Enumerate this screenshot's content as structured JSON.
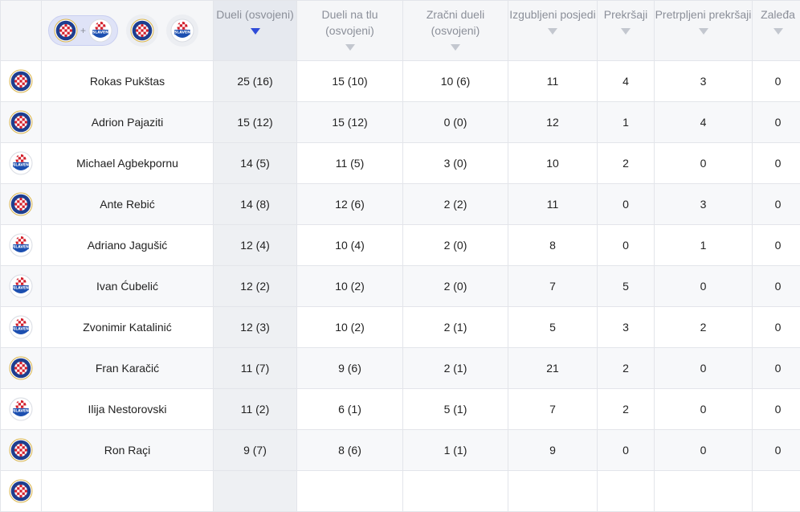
{
  "filters": {
    "combined": {
      "name": "hajduk-slaven-combined",
      "plus": "+"
    },
    "hajduk": {
      "name": "hajduk"
    },
    "slaven": {
      "name": "slaven"
    }
  },
  "logos": {
    "hajduk": {
      "text": "HAJDUK SPLIT",
      "colors": {
        "blue": "#1e3e8f",
        "red": "#d31f2b"
      }
    },
    "slaven": {
      "text": "SLAVEN",
      "colors": {
        "blue": "#1c4fb0",
        "red": "#d31f2b"
      }
    }
  },
  "sorted_column": "duels",
  "columns": [
    {
      "key": "duels",
      "label": "Dueli (osvojeni)",
      "active": true
    },
    {
      "key": "ground_duels",
      "label": "Dueli na tlu (osvojeni)",
      "active": false
    },
    {
      "key": "aerial_duels",
      "label": "Zračni dueli (osvojeni)",
      "active": false
    },
    {
      "key": "possession_lost",
      "label": "Izgubljeni posjedi",
      "active": false
    },
    {
      "key": "fouls",
      "label": "Prekršaji",
      "active": false
    },
    {
      "key": "fouled",
      "label": "Pretrpljeni prekršaji",
      "active": false
    },
    {
      "key": "offsides",
      "label": "Zaleđa",
      "active": false
    }
  ],
  "rows": [
    {
      "club": "hajduk",
      "name": "Rokas Pukštas",
      "duels": "25 (16)",
      "ground_duels": "15 (10)",
      "aerial_duels": "10 (6)",
      "possession_lost": "11",
      "fouls": "4",
      "fouled": "3",
      "offsides": "0"
    },
    {
      "club": "hajduk",
      "name": "Adrion Pajaziti",
      "duels": "15 (12)",
      "ground_duels": "15 (12)",
      "aerial_duels": "0 (0)",
      "possession_lost": "12",
      "fouls": "1",
      "fouled": "4",
      "offsides": "0"
    },
    {
      "club": "slaven",
      "name": "Michael Agbekpornu",
      "duels": "14 (5)",
      "ground_duels": "11 (5)",
      "aerial_duels": "3 (0)",
      "possession_lost": "10",
      "fouls": "2",
      "fouled": "0",
      "offsides": "0"
    },
    {
      "club": "hajduk",
      "name": "Ante Rebić",
      "duels": "14 (8)",
      "ground_duels": "12 (6)",
      "aerial_duels": "2 (2)",
      "possession_lost": "11",
      "fouls": "0",
      "fouled": "3",
      "offsides": "0"
    },
    {
      "club": "slaven",
      "name": "Adriano Jagušić",
      "duels": "12 (4)",
      "ground_duels": "10 (4)",
      "aerial_duels": "2 (0)",
      "possession_lost": "8",
      "fouls": "0",
      "fouled": "1",
      "offsides": "0"
    },
    {
      "club": "slaven",
      "name": "Ivan Ćubelić",
      "duels": "12 (2)",
      "ground_duels": "10 (2)",
      "aerial_duels": "2 (0)",
      "possession_lost": "7",
      "fouls": "5",
      "fouled": "0",
      "offsides": "0"
    },
    {
      "club": "slaven",
      "name": "Zvonimir Katalinić",
      "duels": "12 (3)",
      "ground_duels": "10 (2)",
      "aerial_duels": "2 (1)",
      "possession_lost": "5",
      "fouls": "3",
      "fouled": "2",
      "offsides": "0"
    },
    {
      "club": "hajduk",
      "name": "Fran Karačić",
      "duels": "11 (7)",
      "ground_duels": "9 (6)",
      "aerial_duels": "2 (1)",
      "possession_lost": "21",
      "fouls": "2",
      "fouled": "0",
      "offsides": "0"
    },
    {
      "club": "slaven",
      "name": "Ilija Nestorovski",
      "duels": "11 (2)",
      "ground_duels": "6 (1)",
      "aerial_duels": "5 (1)",
      "possession_lost": "7",
      "fouls": "2",
      "fouled": "0",
      "offsides": "0"
    },
    {
      "club": "hajduk",
      "name": "Ron Raçi",
      "duels": "9 (7)",
      "ground_duels": "8 (6)",
      "aerial_duels": "1 (1)",
      "possession_lost": "9",
      "fouls": "0",
      "fouled": "0",
      "offsides": "0"
    },
    {
      "club": "hajduk",
      "name": "",
      "duels": "",
      "ground_duels": "",
      "aerial_duels": "",
      "possession_lost": "",
      "fouls": "",
      "fouled": "",
      "offsides": ""
    }
  ]
}
